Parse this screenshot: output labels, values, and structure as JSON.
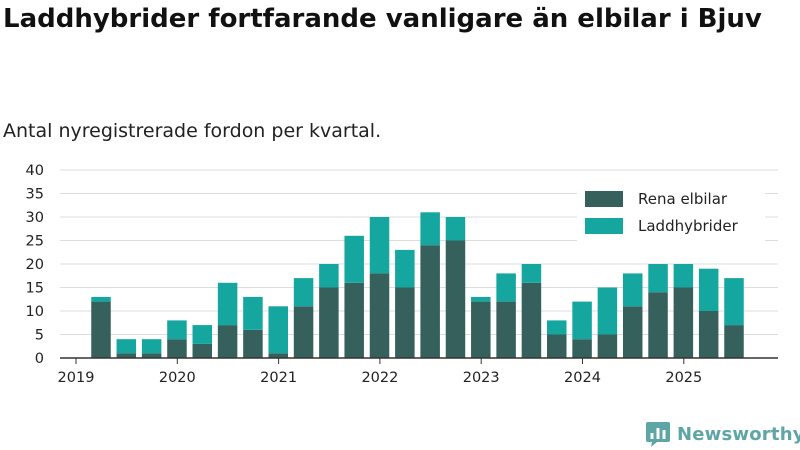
{
  "title": "Laddhybrider fortfarande vanligare än elbilar i Bjuv",
  "subtitle": "Antal nyregistrerade fordon per kvartal.",
  "brand": {
    "name": "Newsworthy",
    "icon": "bar-chart-logo-icon"
  },
  "colors": {
    "electric": "#36605c",
    "hybrid": "#15a6a0",
    "grid": "#dddddd",
    "axis": "#333333",
    "brand": "#5ea6a6"
  },
  "chart_data": {
    "type": "bar",
    "stacked": true,
    "title": "Laddhybrider fortfarande vanligare än elbilar i Bjuv",
    "subtitle": "Antal nyregistrerade fordon per kvartal.",
    "xlabel": "",
    "ylabel": "",
    "ylim": [
      0,
      40
    ],
    "yticks": [
      0,
      5,
      10,
      15,
      20,
      25,
      30,
      35,
      40
    ],
    "grid": true,
    "legend_position": "top-right",
    "year_ticks": [
      "2019",
      "2020",
      "2021",
      "2022",
      "2023",
      "2024",
      "2025"
    ],
    "categories": [
      "2019 Q2",
      "2019 Q3",
      "2019 Q4",
      "2020 Q1",
      "2020 Q2",
      "2020 Q3",
      "2020 Q4",
      "2021 Q1",
      "2021 Q2",
      "2021 Q3",
      "2021 Q4",
      "2022 Q1",
      "2022 Q2",
      "2022 Q3",
      "2022 Q4",
      "2023 Q1",
      "2023 Q2",
      "2023 Q3",
      "2023 Q4",
      "2024 Q1",
      "2024 Q2",
      "2024 Q3",
      "2024 Q4",
      "2025 Q1",
      "2025 Q2",
      "2025 Q3"
    ],
    "series": [
      {
        "name": "Rena elbilar",
        "color": "#36605c",
        "values": [
          12,
          1,
          1,
          4,
          3,
          7,
          6,
          1,
          11,
          15,
          16,
          18,
          15,
          24,
          25,
          12,
          12,
          16,
          5,
          4,
          5,
          11,
          14,
          15,
          10,
          7
        ]
      },
      {
        "name": "Laddhybrider",
        "color": "#15a6a0",
        "values": [
          1,
          3,
          3,
          4,
          4,
          9,
          7,
          10,
          6,
          5,
          10,
          12,
          8,
          7,
          5,
          1,
          6,
          4,
          3,
          8,
          10,
          7,
          6,
          5,
          9,
          10
        ]
      }
    ]
  }
}
